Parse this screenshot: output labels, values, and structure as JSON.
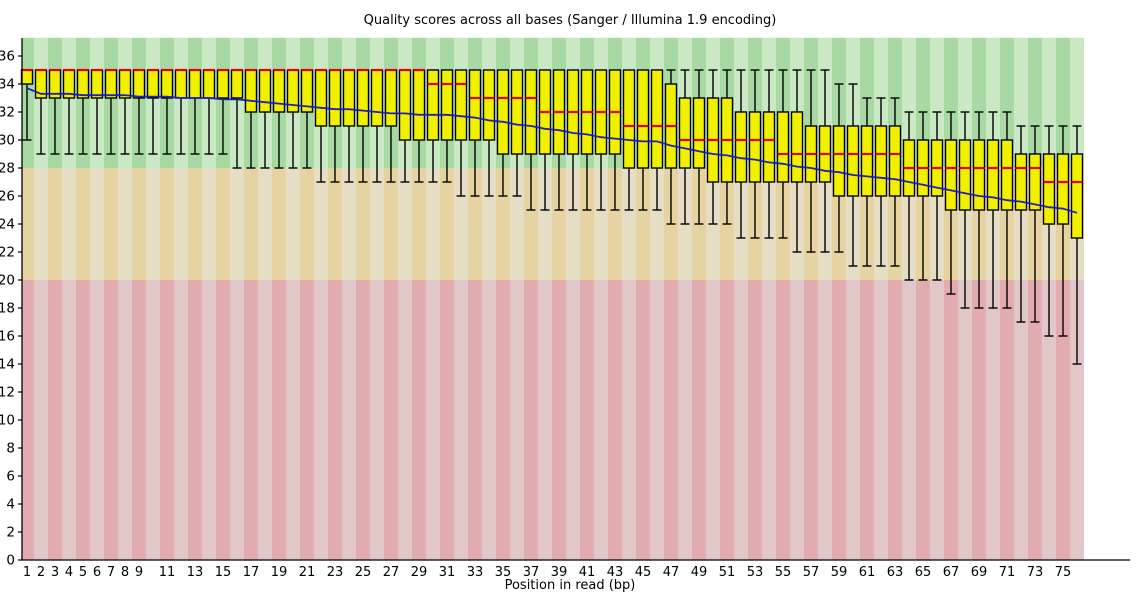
{
  "chart_data": {
    "type": "boxplot",
    "title": "Quality scores across all bases (Sanger / Illumina 1.9 encoding)",
    "xlabel": "Position in read (bp)",
    "ylabel": "",
    "grid": false,
    "legend": false,
    "ylim": [
      0,
      37.3
    ],
    "yticks": [
      0,
      2,
      4,
      6,
      8,
      10,
      12,
      14,
      16,
      18,
      20,
      22,
      24,
      26,
      28,
      30,
      32,
      34,
      36
    ],
    "xtick_labels": [
      "1",
      "2",
      "3",
      "4",
      "5",
      "6",
      "7",
      "8",
      "9",
      "11",
      "13",
      "15",
      "17",
      "19",
      "21",
      "23",
      "25",
      "27",
      "29",
      "31",
      "33",
      "35",
      "37",
      "39",
      "41",
      "43",
      "45",
      "47",
      "49",
      "51",
      "53",
      "55",
      "57",
      "59",
      "61",
      "63",
      "65",
      "67",
      "69",
      "71",
      "73",
      "75"
    ],
    "x": [
      1,
      2,
      3,
      4,
      5,
      6,
      7,
      8,
      9,
      10,
      11,
      12,
      13,
      14,
      15,
      16,
      17,
      18,
      19,
      20,
      21,
      22,
      23,
      24,
      25,
      26,
      27,
      28,
      29,
      30,
      31,
      32,
      33,
      34,
      35,
      36,
      37,
      38,
      39,
      40,
      41,
      42,
      43,
      44,
      45,
      46,
      47,
      48,
      49,
      50,
      51,
      52,
      53,
      54,
      55,
      56,
      57,
      58,
      59,
      60,
      61,
      62,
      63,
      64,
      65,
      66,
      67,
      68,
      69,
      70,
      71,
      72,
      73,
      74,
      75,
      76
    ],
    "series": {
      "median": [
        35,
        35,
        35,
        35,
        35,
        35,
        35,
        35,
        35,
        35,
        35,
        35,
        35,
        35,
        35,
        35,
        35,
        35,
        35,
        35,
        35,
        35,
        35,
        35,
        35,
        35,
        35,
        35,
        35,
        34,
        34,
        34,
        33,
        33,
        33,
        33,
        33,
        32,
        32,
        32,
        32,
        32,
        32,
        31,
        31,
        31,
        31,
        30,
        30,
        30,
        30,
        30,
        30,
        30,
        29,
        29,
        29,
        29,
        29,
        29,
        29,
        29,
        29,
        28,
        28,
        28,
        28,
        28,
        28,
        28,
        28,
        28,
        28,
        27,
        27,
        27
      ],
      "q3": [
        35,
        35,
        35,
        35,
        35,
        35,
        35,
        35,
        35,
        35,
        35,
        35,
        35,
        35,
        35,
        35,
        35,
        35,
        35,
        35,
        35,
        35,
        35,
        35,
        35,
        35,
        35,
        35,
        35,
        35,
        35,
        35,
        35,
        35,
        35,
        35,
        35,
        35,
        35,
        35,
        35,
        35,
        35,
        35,
        35,
        35,
        34,
        33,
        33,
        33,
        33,
        32,
        32,
        32,
        32,
        32,
        31,
        31,
        31,
        31,
        31,
        31,
        31,
        30,
        30,
        30,
        30,
        30,
        30,
        30,
        30,
        29,
        29,
        29,
        29,
        29
      ],
      "q1": [
        34,
        33,
        33,
        33,
        33,
        33,
        33,
        33,
        33,
        33,
        33,
        33,
        33,
        33,
        33,
        33,
        32,
        32,
        32,
        32,
        32,
        31,
        31,
        31,
        31,
        31,
        31,
        30,
        30,
        30,
        30,
        30,
        30,
        30,
        29,
        29,
        29,
        29,
        29,
        29,
        29,
        29,
        29,
        28,
        28,
        28,
        28,
        28,
        28,
        27,
        27,
        27,
        27,
        27,
        27,
        27,
        27,
        27,
        26,
        26,
        26,
        26,
        26,
        26,
        26,
        26,
        25,
        25,
        25,
        25,
        25,
        25,
        25,
        24,
        24,
        23
      ],
      "p10": [
        30,
        29,
        29,
        29,
        29,
        29,
        29,
        29,
        29,
        29,
        29,
        29,
        29,
        29,
        29,
        28,
        28,
        28,
        28,
        28,
        28,
        27,
        27,
        27,
        27,
        27,
        27,
        27,
        27,
        27,
        27,
        26,
        26,
        26,
        26,
        26,
        25,
        25,
        25,
        25,
        25,
        25,
        25,
        25,
        25,
        25,
        24,
        24,
        24,
        24,
        24,
        23,
        23,
        23,
        23,
        22,
        22,
        22,
        22,
        21,
        21,
        21,
        21,
        20,
        20,
        20,
        19,
        18,
        18,
        18,
        18,
        17,
        17,
        16,
        16,
        14
      ],
      "p90": [
        35,
        35,
        35,
        35,
        35,
        35,
        35,
        35,
        35,
        35,
        35,
        35,
        35,
        35,
        35,
        35,
        35,
        35,
        35,
        35,
        35,
        35,
        35,
        35,
        35,
        35,
        35,
        35,
        35,
        35,
        35,
        35,
        35,
        35,
        35,
        35,
        35,
        35,
        35,
        35,
        35,
        35,
        35,
        35,
        35,
        35,
        35,
        35,
        35,
        35,
        35,
        35,
        35,
        35,
        35,
        35,
        35,
        35,
        34,
        34,
        33,
        33,
        33,
        32,
        32,
        32,
        32,
        32,
        32,
        32,
        32,
        31,
        31,
        31,
        31,
        31
      ],
      "mean": [
        33.7,
        33.3,
        33.3,
        33.3,
        33.2,
        33.2,
        33.2,
        33.2,
        33.1,
        33.1,
        33.1,
        33.0,
        33.0,
        33.0,
        32.9,
        32.9,
        32.8,
        32.7,
        32.6,
        32.5,
        32.4,
        32.3,
        32.2,
        32.2,
        32.1,
        32.0,
        31.9,
        31.9,
        31.8,
        31.8,
        31.8,
        31.7,
        31.6,
        31.4,
        31.3,
        31.1,
        31.0,
        30.8,
        30.7,
        30.5,
        30.4,
        30.2,
        30.1,
        30.0,
        29.9,
        29.9,
        29.6,
        29.4,
        29.2,
        29.0,
        28.9,
        28.7,
        28.6,
        28.4,
        28.3,
        28.1,
        28.0,
        27.8,
        27.7,
        27.5,
        27.4,
        27.3,
        27.2,
        27.0,
        26.8,
        26.6,
        26.4,
        26.2,
        26.0,
        25.9,
        25.7,
        25.6,
        25.4,
        25.2,
        25.1,
        24.8
      ]
    },
    "bands": [
      {
        "name": "good-quality-band",
        "from": 28,
        "to": 37.3,
        "color_dark": "#a9d9a3",
        "color_light": "#c9e8c3"
      },
      {
        "name": "medium-quality-band",
        "from": 20,
        "to": 28,
        "color_dark": "#e5d4a2",
        "color_light": "#e5ddc4"
      },
      {
        "name": "poor-quality-band",
        "from": 0,
        "to": 20,
        "color_dark": "#e2abaf",
        "color_light": "#e2c7c9"
      }
    ],
    "colors": {
      "box_fill": "#f0f000",
      "box_border": "#000000",
      "median": "#e00000",
      "mean_line": "#2020c0",
      "whisker": "#000000",
      "axis": "#000000",
      "tick_label": "#000000"
    }
  }
}
